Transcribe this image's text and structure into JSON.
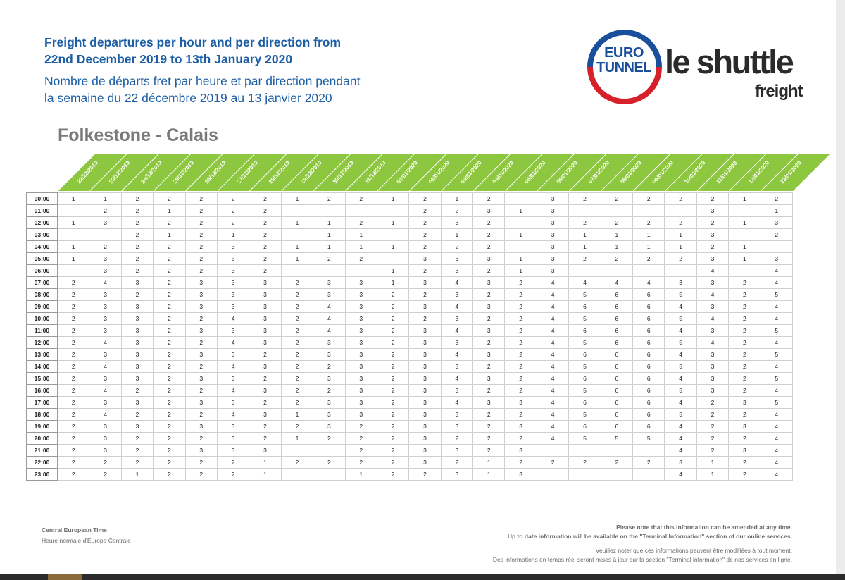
{
  "header": {
    "title_en_line1": "Freight departures per hour and per direction from",
    "title_en_line2": "22nd December 2019 to 13th January 2020",
    "title_fr_line1": "Nombre de départs fret par heure et par direction pendant",
    "title_fr_line2": "la semaine du 22 décembre 2019 au 13 janvier 2020",
    "route": "Folkestone - Calais"
  },
  "logo": {
    "euro": "EURO",
    "tunnel": "TUNNEL",
    "shuttle": "le shuttle",
    "freight": "freight",
    "colors": {
      "blue": "#1a4f9c",
      "red": "#d6202a",
      "dark": "#2a2a2a"
    }
  },
  "table": {
    "header_color": "#8dc63f",
    "dates": [
      "22/12/2019",
      "23/12/2019",
      "24/12/2019",
      "25/12/2019",
      "26/12/2019",
      "27/12/2019",
      "28/12/2019",
      "29/12/2019",
      "30/12/2019",
      "31/12/2019",
      "01/01/2020",
      "02/01/2020",
      "03/01/2020",
      "04/01/2020",
      "05/01/2020",
      "06/01/2020",
      "07/01/2020",
      "08/01/2020",
      "09/01/2020",
      "10/01/2020",
      "11/01/2020",
      "12/01/2020",
      "13/01/2020"
    ],
    "hours": [
      "00:00",
      "01:00",
      "02:00",
      "03:00",
      "04:00",
      "05:00",
      "06:00",
      "07:00",
      "08:00",
      "09:00",
      "10:00",
      "11:00",
      "12:00",
      "13:00",
      "14:00",
      "15:00",
      "16:00",
      "17:00",
      "18:00",
      "19:00",
      "20:00",
      "21:00",
      "22:00",
      "23:00"
    ],
    "rows": [
      [
        "1",
        "1",
        "2",
        "2",
        "2",
        "2",
        "2",
        "1",
        "2",
        "2",
        "1",
        "2",
        "1",
        "2",
        "",
        "3",
        "2",
        "2",
        "2",
        "2",
        "2",
        "1",
        "2"
      ],
      [
        "",
        "2",
        "2",
        "1",
        "2",
        "2",
        "2",
        "",
        "",
        "",
        "",
        "2",
        "2",
        "3",
        "1",
        "3",
        "",
        "",
        "",
        "",
        "3",
        "",
        "1"
      ],
      [
        "1",
        "3",
        "2",
        "2",
        "2",
        "2",
        "2",
        "1",
        "1",
        "2",
        "1",
        "2",
        "3",
        "2",
        "",
        "3",
        "2",
        "2",
        "2",
        "2",
        "2",
        "1",
        "3"
      ],
      [
        "",
        "",
        "2",
        "1",
        "2",
        "1",
        "2",
        "",
        "1",
        "1",
        "",
        "2",
        "1",
        "2",
        "1",
        "3",
        "1",
        "1",
        "1",
        "1",
        "3",
        "",
        "2"
      ],
      [
        "1",
        "2",
        "2",
        "2",
        "2",
        "3",
        "2",
        "1",
        "1",
        "1",
        "1",
        "2",
        "2",
        "2",
        "",
        "3",
        "1",
        "1",
        "1",
        "1",
        "2",
        "1",
        ""
      ],
      [
        "1",
        "3",
        "2",
        "2",
        "2",
        "3",
        "2",
        "1",
        "2",
        "2",
        "",
        "3",
        "3",
        "3",
        "1",
        "3",
        "2",
        "2",
        "2",
        "2",
        "3",
        "1",
        "3"
      ],
      [
        "",
        "3",
        "2",
        "2",
        "2",
        "3",
        "2",
        "",
        "",
        "",
        "1",
        "2",
        "3",
        "2",
        "1",
        "3",
        "",
        "",
        "",
        "",
        "4",
        "",
        "4"
      ],
      [
        "2",
        "4",
        "3",
        "2",
        "3",
        "3",
        "3",
        "2",
        "3",
        "3",
        "1",
        "3",
        "4",
        "3",
        "2",
        "4",
        "4",
        "4",
        "4",
        "3",
        "3",
        "2",
        "4"
      ],
      [
        "2",
        "3",
        "2",
        "2",
        "3",
        "3",
        "3",
        "2",
        "3",
        "3",
        "2",
        "2",
        "3",
        "2",
        "2",
        "4",
        "5",
        "6",
        "6",
        "5",
        "4",
        "2",
        "5"
      ],
      [
        "2",
        "3",
        "3",
        "2",
        "3",
        "3",
        "3",
        "2",
        "4",
        "3",
        "2",
        "3",
        "4",
        "3",
        "2",
        "4",
        "6",
        "6",
        "6",
        "4",
        "3",
        "2",
        "4"
      ],
      [
        "2",
        "3",
        "3",
        "2",
        "2",
        "4",
        "3",
        "2",
        "4",
        "3",
        "2",
        "2",
        "3",
        "2",
        "2",
        "4",
        "5",
        "6",
        "6",
        "5",
        "4",
        "2",
        "4"
      ],
      [
        "2",
        "3",
        "3",
        "2",
        "3",
        "3",
        "3",
        "2",
        "4",
        "3",
        "2",
        "3",
        "4",
        "3",
        "2",
        "4",
        "6",
        "6",
        "6",
        "4",
        "3",
        "2",
        "5"
      ],
      [
        "2",
        "4",
        "3",
        "2",
        "2",
        "4",
        "3",
        "2",
        "3",
        "3",
        "2",
        "3",
        "3",
        "2",
        "2",
        "4",
        "5",
        "6",
        "6",
        "5",
        "4",
        "2",
        "4"
      ],
      [
        "2",
        "3",
        "3",
        "2",
        "3",
        "3",
        "2",
        "2",
        "3",
        "3",
        "2",
        "3",
        "4",
        "3",
        "2",
        "4",
        "6",
        "6",
        "6",
        "4",
        "3",
        "2",
        "5"
      ],
      [
        "2",
        "4",
        "3",
        "2",
        "2",
        "4",
        "3",
        "2",
        "2",
        "3",
        "2",
        "3",
        "3",
        "2",
        "2",
        "4",
        "5",
        "6",
        "6",
        "5",
        "3",
        "2",
        "4"
      ],
      [
        "2",
        "3",
        "3",
        "2",
        "3",
        "3",
        "2",
        "2",
        "3",
        "3",
        "2",
        "3",
        "4",
        "3",
        "2",
        "4",
        "6",
        "6",
        "6",
        "4",
        "3",
        "2",
        "5"
      ],
      [
        "2",
        "4",
        "2",
        "2",
        "2",
        "4",
        "3",
        "2",
        "2",
        "3",
        "2",
        "3",
        "3",
        "2",
        "2",
        "4",
        "5",
        "6",
        "6",
        "5",
        "3",
        "2",
        "4"
      ],
      [
        "2",
        "3",
        "3",
        "2",
        "3",
        "3",
        "2",
        "2",
        "3",
        "3",
        "2",
        "3",
        "4",
        "3",
        "3",
        "4",
        "6",
        "6",
        "6",
        "4",
        "2",
        "3",
        "5"
      ],
      [
        "2",
        "4",
        "2",
        "2",
        "2",
        "4",
        "3",
        "1",
        "3",
        "3",
        "2",
        "3",
        "3",
        "2",
        "2",
        "4",
        "5",
        "6",
        "6",
        "5",
        "2",
        "2",
        "4"
      ],
      [
        "2",
        "3",
        "3",
        "2",
        "3",
        "3",
        "2",
        "2",
        "3",
        "2",
        "2",
        "3",
        "3",
        "2",
        "3",
        "4",
        "6",
        "6",
        "6",
        "4",
        "2",
        "3",
        "4"
      ],
      [
        "2",
        "3",
        "2",
        "2",
        "2",
        "3",
        "2",
        "1",
        "2",
        "2",
        "2",
        "3",
        "2",
        "2",
        "2",
        "4",
        "5",
        "5",
        "5",
        "4",
        "2",
        "2",
        "4"
      ],
      [
        "2",
        "3",
        "2",
        "2",
        "3",
        "3",
        "3",
        "",
        "",
        "2",
        "2",
        "3",
        "3",
        "2",
        "3",
        "",
        "",
        "",
        "",
        "4",
        "2",
        "3",
        "4"
      ],
      [
        "2",
        "2",
        "2",
        "2",
        "2",
        "2",
        "1",
        "2",
        "2",
        "2",
        "2",
        "3",
        "2",
        "1",
        "2",
        "2",
        "2",
        "2",
        "2",
        "3",
        "1",
        "2",
        "4"
      ],
      [
        "2",
        "2",
        "1",
        "2",
        "2",
        "2",
        "1",
        "",
        "",
        "1",
        "2",
        "2",
        "3",
        "1",
        "3",
        "",
        "",
        "",
        "",
        "4",
        "1",
        "2",
        "4"
      ]
    ]
  },
  "footer": {
    "tz_en": "Central European Time",
    "tz_fr": "Heure normale d'Europe Centrale",
    "note_en_1": "Please note that this information can be amended at any time.",
    "note_en_2": "Up to date information will be available on the \"Terminal Information\" section of our online services.",
    "note_fr_1": "Veuillez noter que ces informations peuvent être modifiées à tout moment.",
    "note_fr_2": "Des informations en temps réel seront mises à jour sur la section \"Terminal information\" de nos services en ligne."
  }
}
